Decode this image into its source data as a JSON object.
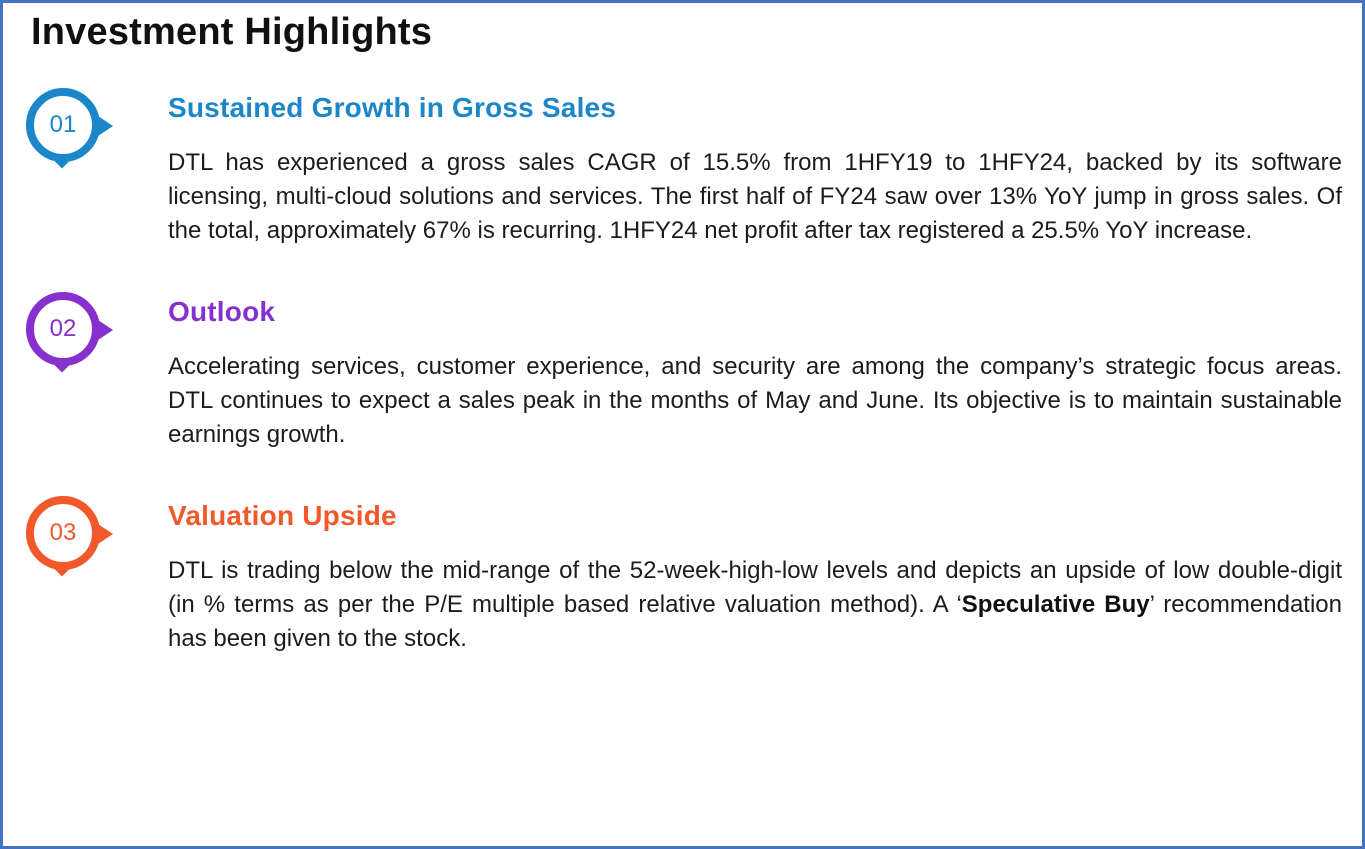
{
  "page": {
    "title": "Investment Highlights",
    "border_color": "#4472C4",
    "background_color": "#FFFFFF"
  },
  "sections": [
    {
      "number": "01",
      "accent_color": "#1B87C9",
      "heading": "Sustained Growth in Gross Sales",
      "body": "DTL has experienced a gross sales CAGR of 15.5% from 1HFY19 to 1HFY24, backed by its software licensing, multi-cloud solutions and services. The first half of FY24 saw over 13% YoY jump in gross sales. Of the total, approximately 67% is recurring. 1HFY24 net profit after tax registered a 25.5% YoY increase."
    },
    {
      "number": "02",
      "accent_color": "#8630CE",
      "heading": "Outlook",
      "body": "Accelerating services, customer experience, and security are among the company’s strategic focus areas. DTL continues to expect a sales peak in the months of May and June. Its objective is to maintain sustainable earnings growth."
    },
    {
      "number": "03",
      "accent_color": "#F1592B",
      "heading": "Valuation Upside",
      "body_pre": "DTL is trading below the mid-range of the 52-week-high-low levels and depicts an upside of low double-digit (in % terms as per the P/E multiple based relative valuation method). A ‘",
      "body_bold": "Speculative Buy",
      "body_post": "’ recommendation has been given to the stock."
    }
  ]
}
